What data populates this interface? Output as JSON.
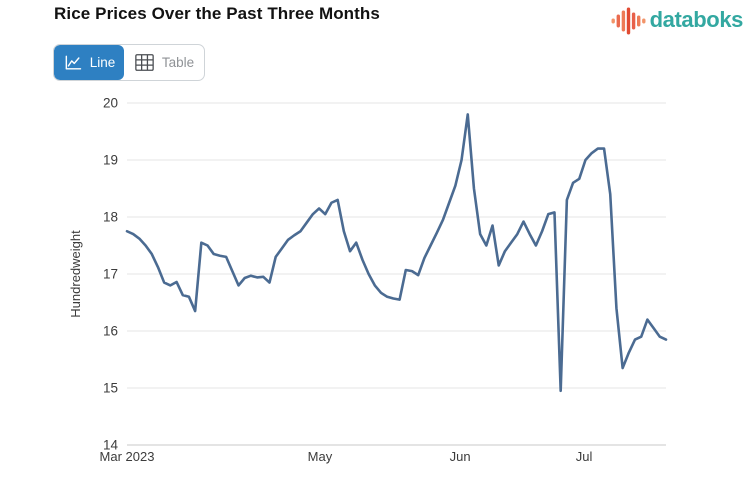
{
  "header": {
    "logo": {
      "text": "databoks",
      "text_color": "#33a8a1",
      "bar_heights": [
        5,
        13,
        21,
        27,
        17,
        11,
        5
      ],
      "bar_colors": [
        "#f29469",
        "#ea6a4e",
        "#ee7b57",
        "#e14b33",
        "#e8604a",
        "#ee7b57",
        "#f29469"
      ]
    }
  },
  "toolbar": {
    "line_label": "Line",
    "table_label": "Table",
    "active_view": "Line",
    "active_bg": "#2e80c2"
  },
  "chart_data": {
    "type": "line",
    "title": "Rice Prices Over the Past Three Months",
    "xlabel": "",
    "ylabel": "Hundredweight",
    "ylim": [
      14,
      20
    ],
    "yticks": [
      14,
      15,
      16,
      17,
      18,
      19,
      20
    ],
    "xticks": [
      {
        "label": "Mar 2023",
        "pos": 0
      },
      {
        "label": "May",
        "pos": 0.358
      },
      {
        "label": "Jun",
        "pos": 0.618
      },
      {
        "label": "Jul",
        "pos": 0.848
      }
    ],
    "grid": "horizontal-only",
    "legend": "none",
    "line_color": "#4b6b92",
    "grid_color": "#e6e6e6",
    "axis_line_color": "#c9c9c9",
    "tick_label_color": "#3c3c3c",
    "series": [
      {
        "dates": [
          "2023-03-17",
          "2023-03-20",
          "2023-03-21",
          "2023-03-22",
          "2023-03-23",
          "2023-03-24",
          "2023-03-27",
          "2023-03-28",
          "2023-03-29",
          "2023-03-30",
          "2023-03-31",
          "2023-04-03",
          "2023-04-04",
          "2023-04-05",
          "2023-04-06",
          "2023-04-07",
          "2023-04-10",
          "2023-04-11",
          "2023-04-12",
          "2023-04-13",
          "2023-04-14",
          "2023-04-17",
          "2023-04-18",
          "2023-04-19",
          "2023-04-20",
          "2023-04-21",
          "2023-04-24",
          "2023-04-25",
          "2023-04-26",
          "2023-04-27",
          "2023-04-28",
          "2023-05-01",
          "2023-05-02",
          "2023-05-03",
          "2023-05-04",
          "2023-05-05",
          "2023-05-08",
          "2023-05-09",
          "2023-05-10",
          "2023-05-11",
          "2023-05-12",
          "2023-05-15",
          "2023-05-16",
          "2023-05-17",
          "2023-05-18",
          "2023-05-19",
          "2023-05-22",
          "2023-05-23",
          "2023-05-24",
          "2023-05-25",
          "2023-05-26",
          "2023-05-29",
          "2023-05-30",
          "2023-05-31",
          "2023-06-01",
          "2023-06-02",
          "2023-06-05",
          "2023-06-06",
          "2023-06-07",
          "2023-06-08",
          "2023-06-09",
          "2023-06-12",
          "2023-06-13",
          "2023-06-14",
          "2023-06-15",
          "2023-06-16",
          "2023-06-19",
          "2023-06-20",
          "2023-06-21",
          "2023-06-22",
          "2023-06-23",
          "2023-06-26",
          "2023-06-27",
          "2023-06-28",
          "2023-06-29",
          "2023-06-30",
          "2023-07-03",
          "2023-07-04",
          "2023-07-05",
          "2023-07-06",
          "2023-07-07",
          "2023-07-10",
          "2023-07-11",
          "2023-07-12",
          "2023-07-13",
          "2023-07-14",
          "2023-07-17",
          "2023-07-18"
        ],
        "values": [
          17.75,
          17.7,
          17.62,
          17.5,
          17.35,
          17.12,
          16.85,
          16.8,
          16.86,
          16.63,
          16.6,
          16.35,
          17.55,
          17.5,
          17.35,
          17.32,
          17.3,
          17.05,
          16.8,
          16.93,
          16.97,
          16.94,
          16.95,
          16.85,
          17.3,
          17.45,
          17.6,
          17.68,
          17.75,
          17.9,
          18.05,
          18.15,
          18.05,
          18.25,
          18.3,
          17.75,
          17.4,
          17.55,
          17.25,
          17.0,
          16.8,
          16.67,
          16.6,
          16.57,
          16.55,
          17.07,
          17.05,
          16.98,
          17.28,
          17.5,
          17.72,
          17.95,
          18.25,
          18.55,
          19.0,
          19.8,
          18.5,
          17.7,
          17.5,
          17.85,
          17.15,
          17.4,
          17.55,
          17.7,
          17.92,
          17.7,
          17.5,
          17.75,
          18.05,
          18.08,
          14.95,
          18.3,
          18.6,
          18.67,
          19.0,
          19.12,
          19.2,
          19.2,
          18.4,
          16.4,
          15.35,
          15.62,
          15.85,
          15.9,
          16.2,
          16.05,
          15.9,
          15.85
        ]
      }
    ]
  }
}
